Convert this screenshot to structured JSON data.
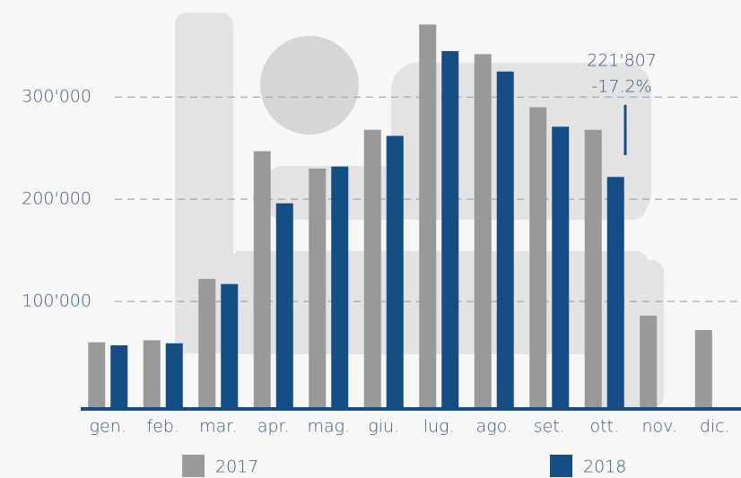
{
  "chart_data": {
    "type": "bar",
    "categories": [
      "gen.",
      "feb.",
      "mar.",
      "apr.",
      "mag.",
      "giu.",
      "lug.",
      "ago.",
      "set.",
      "ott.",
      "nov.",
      "dic."
    ],
    "series": [
      {
        "name": "2017",
        "color": "#999999",
        "values": [
          60000,
          62000,
          122000,
          247000,
          230000,
          268000,
          371000,
          342000,
          290000,
          267883,
          86000,
          72000
        ]
      },
      {
        "name": "2018",
        "color": "#154d85",
        "values": [
          57000,
          59000,
          117000,
          196000,
          232000,
          262000,
          345000,
          325000,
          271000,
          221807,
          null,
          null
        ]
      }
    ],
    "ylim": [
      0,
      395000
    ],
    "yticks": [
      {
        "value": 100000,
        "label": "100'000"
      },
      {
        "value": 200000,
        "label": "200'000"
      },
      {
        "value": 300000,
        "label": "300'000"
      }
    ],
    "grid": true,
    "annotation": {
      "label": "221'807",
      "change": "-17.2%"
    }
  }
}
